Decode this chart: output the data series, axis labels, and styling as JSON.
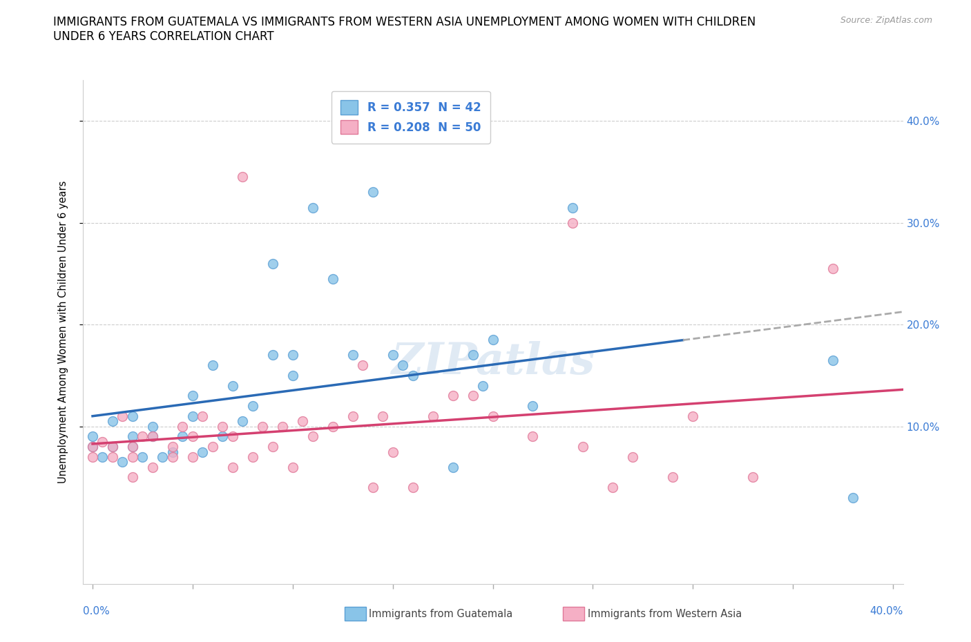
{
  "title": "IMMIGRANTS FROM GUATEMALA VS IMMIGRANTS FROM WESTERN ASIA UNEMPLOYMENT AMONG WOMEN WITH CHILDREN\nUNDER 6 YEARS CORRELATION CHART",
  "source": "Source: ZipAtlas.com",
  "ylabel": "Unemployment Among Women with Children Under 6 years",
  "xlim": [
    -0.005,
    0.405
  ],
  "ylim": [
    -0.055,
    0.44
  ],
  "yticks": [
    0.1,
    0.2,
    0.3,
    0.4
  ],
  "ytick_labels": [
    "10.0%",
    "20.0%",
    "30.0%",
    "40.0%"
  ],
  "xtick_left_label": "0.0%",
  "xtick_right_label": "40.0%",
  "guatemala_color": "#89c4e8",
  "western_asia_color": "#f5afc5",
  "guatemala_edge": "#5b9fd4",
  "western_asia_edge": "#e07898",
  "line_blue": "#2a6ab5",
  "line_pink": "#d44070",
  "line_dash_color": "#aaaaaa",
  "R_guatemala": 0.357,
  "N_guatemala": 42,
  "R_western_asia": 0.208,
  "N_western_asia": 50,
  "guatemala_x": [
    0.0,
    0.0,
    0.005,
    0.01,
    0.01,
    0.015,
    0.02,
    0.02,
    0.02,
    0.025,
    0.03,
    0.03,
    0.035,
    0.04,
    0.045,
    0.05,
    0.05,
    0.055,
    0.06,
    0.065,
    0.07,
    0.075,
    0.08,
    0.09,
    0.09,
    0.1,
    0.1,
    0.11,
    0.12,
    0.13,
    0.14,
    0.15,
    0.155,
    0.16,
    0.18,
    0.19,
    0.195,
    0.2,
    0.22,
    0.24,
    0.37,
    0.38
  ],
  "guatemala_y": [
    0.08,
    0.09,
    0.07,
    0.08,
    0.105,
    0.065,
    0.08,
    0.09,
    0.11,
    0.07,
    0.09,
    0.1,
    0.07,
    0.075,
    0.09,
    0.11,
    0.13,
    0.075,
    0.16,
    0.09,
    0.14,
    0.105,
    0.12,
    0.17,
    0.26,
    0.15,
    0.17,
    0.315,
    0.245,
    0.17,
    0.33,
    0.17,
    0.16,
    0.15,
    0.06,
    0.17,
    0.14,
    0.185,
    0.12,
    0.315,
    0.165,
    0.03
  ],
  "western_asia_x": [
    0.0,
    0.0,
    0.005,
    0.01,
    0.01,
    0.015,
    0.02,
    0.02,
    0.02,
    0.025,
    0.03,
    0.03,
    0.04,
    0.04,
    0.045,
    0.05,
    0.05,
    0.055,
    0.06,
    0.065,
    0.07,
    0.07,
    0.075,
    0.08,
    0.085,
    0.09,
    0.095,
    0.1,
    0.105,
    0.11,
    0.12,
    0.13,
    0.135,
    0.14,
    0.145,
    0.15,
    0.16,
    0.17,
    0.18,
    0.19,
    0.2,
    0.22,
    0.24,
    0.245,
    0.26,
    0.27,
    0.29,
    0.3,
    0.33,
    0.37
  ],
  "western_asia_y": [
    0.07,
    0.08,
    0.085,
    0.07,
    0.08,
    0.11,
    0.05,
    0.07,
    0.08,
    0.09,
    0.06,
    0.09,
    0.07,
    0.08,
    0.1,
    0.07,
    0.09,
    0.11,
    0.08,
    0.1,
    0.06,
    0.09,
    0.345,
    0.07,
    0.1,
    0.08,
    0.1,
    0.06,
    0.105,
    0.09,
    0.1,
    0.11,
    0.16,
    0.04,
    0.11,
    0.075,
    0.04,
    0.11,
    0.13,
    0.13,
    0.11,
    0.09,
    0.3,
    0.08,
    0.04,
    0.07,
    0.05,
    0.11,
    0.05,
    0.255
  ],
  "title_fontsize": 12,
  "axis_label_fontsize": 10.5,
  "tick_fontsize": 11,
  "legend_fontsize": 12,
  "marker_size": 100,
  "blue_line_solid_end": 0.295,
  "blue_line_dash_start": 0.295,
  "blue_line_dash_end": 0.405
}
